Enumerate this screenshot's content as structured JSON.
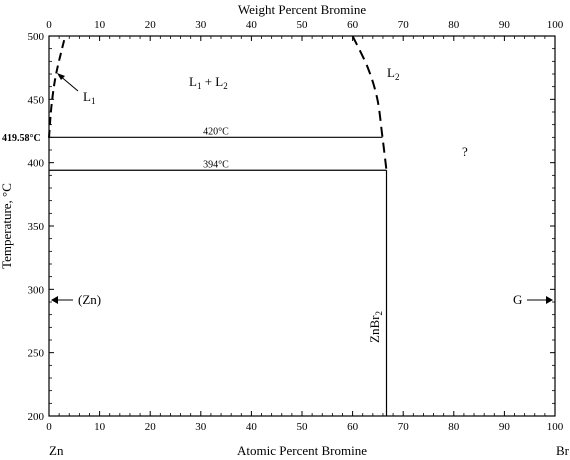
{
  "chart_data": {
    "type": "line",
    "top_axis": {
      "title": "Weight Percent Bromine",
      "ticks": [
        0,
        10,
        20,
        30,
        40,
        50,
        60,
        70,
        80,
        90,
        100
      ],
      "tick_labels": [
        "0",
        "10",
        "20",
        "30",
        "40",
        "50",
        "60",
        "70",
        "80",
        "90",
        "100"
      ]
    },
    "x_axis": {
      "title": "Atomic Percent Bromine",
      "range": [
        0,
        100
      ],
      "ticks": [
        0,
        10,
        20,
        30,
        40,
        50,
        60,
        70,
        80,
        90,
        100
      ],
      "tick_labels": [
        "0",
        "10",
        "20",
        "30",
        "40",
        "50",
        "60",
        "70",
        "80",
        "90",
        "100"
      ],
      "left_component": "Zn",
      "right_component": "Br"
    },
    "y_axis": {
      "title": "Temperature, °C",
      "range": [
        200,
        500
      ],
      "ticks": [
        200,
        250,
        300,
        350,
        400,
        450,
        500
      ],
      "tick_labels": [
        "200",
        "250",
        "300",
        "350",
        "400",
        "450",
        "500"
      ],
      "special_label": "419.58°C",
      "special_value": 419.58
    },
    "isotherms": [
      {
        "label": "420°C",
        "t": 420,
        "x_from": 0,
        "x_to": 65.9
      },
      {
        "label": "394°C",
        "t": 394,
        "x_from": 0,
        "x_to": 66.7
      }
    ],
    "compound": {
      "label": "ZnBr",
      "sub": "2",
      "x": 66.7,
      "t_from": 200,
      "t_to": 394
    },
    "liquidus_left": [
      [
        0,
        419.58
      ],
      [
        0.5,
        445
      ],
      [
        1.4,
        470
      ],
      [
        3.2,
        500
      ]
    ],
    "liquidus_right": [
      [
        60,
        500
      ],
      [
        63,
        475
      ],
      [
        64.9,
        450
      ],
      [
        65.9,
        420
      ],
      [
        66.7,
        394
      ]
    ],
    "phase_labels": {
      "l1": {
        "base": "L",
        "sub": "1"
      },
      "l2": {
        "base": "L",
        "sub": "2"
      },
      "l1l2": {
        "a": "L",
        "a_sub": "1",
        "plus": " + ",
        "b": "L",
        "b_sub": "2"
      },
      "unknown": "?",
      "zn": "(Zn)",
      "g": "G"
    }
  }
}
